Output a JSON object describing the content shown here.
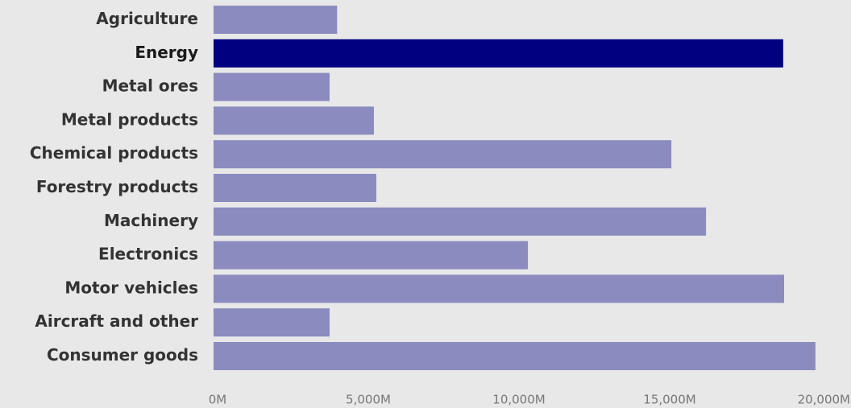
{
  "chart_data": {
    "type": "bar",
    "orientation": "horizontal",
    "categories": [
      "Agriculture",
      "Energy",
      "Metal ores",
      "Metal products",
      "Chemical products",
      "Forestry products",
      "Machinery",
      "Electronics",
      "Motor vehicles",
      "Aircraft and other",
      "Consumer goods"
    ],
    "values": [
      4100,
      18900,
      3850,
      5320,
      15190,
      5400,
      16340,
      10430,
      18930,
      3850,
      19970
    ],
    "color": "#8b8bbf",
    "highlight": "Energy",
    "highlight_color": "#000080",
    "xlim": [
      0,
      20000
    ],
    "xticks": [
      {
        "value": 0,
        "label": "0M"
      },
      {
        "value": 5000,
        "label": "5,000M"
      },
      {
        "value": 10000,
        "label": "10,000M"
      },
      {
        "value": 15000,
        "label": "15,000M"
      },
      {
        "value": 20000,
        "label": "20,000M"
      }
    ],
    "grid": false
  }
}
